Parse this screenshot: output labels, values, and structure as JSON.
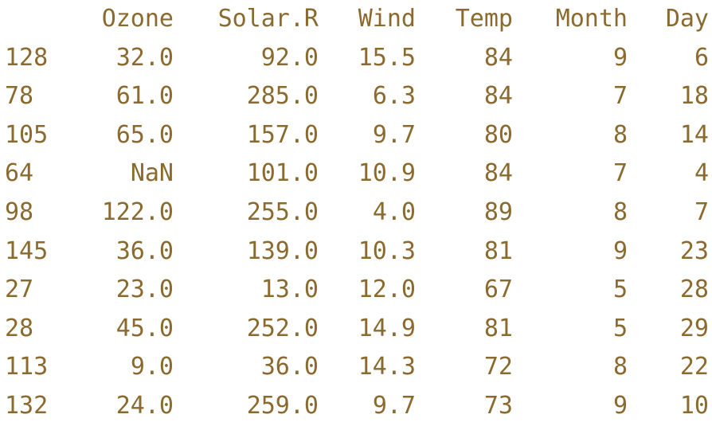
{
  "columns": [
    "Ozone",
    "Solar.R",
    "Wind",
    "Temp",
    "Month",
    "Day"
  ],
  "rows": [
    {
      "index": "128",
      "values": [
        "32.0",
        "92.0",
        "15.5",
        "84",
        "9",
        "6"
      ]
    },
    {
      "index": "78",
      "values": [
        "61.0",
        "285.0",
        "6.3",
        "84",
        "7",
        "18"
      ]
    },
    {
      "index": "105",
      "values": [
        "65.0",
        "157.0",
        "9.7",
        "80",
        "8",
        "14"
      ]
    },
    {
      "index": "64",
      "values": [
        "NaN",
        "101.0",
        "10.9",
        "84",
        "7",
        "4"
      ]
    },
    {
      "index": "98",
      "values": [
        "122.0",
        "255.0",
        "4.0",
        "89",
        "8",
        "7"
      ]
    },
    {
      "index": "145",
      "values": [
        "36.0",
        "139.0",
        "10.3",
        "81",
        "9",
        "23"
      ]
    },
    {
      "index": "27",
      "values": [
        "23.0",
        "13.0",
        "12.0",
        "67",
        "5",
        "28"
      ]
    },
    {
      "index": "28",
      "values": [
        "45.0",
        "252.0",
        "14.9",
        "81",
        "5",
        "29"
      ]
    },
    {
      "index": "113",
      "values": [
        "9.0",
        "36.0",
        "14.3",
        "72",
        "8",
        "22"
      ]
    },
    {
      "index": "132",
      "values": [
        "24.0",
        "259.0",
        "9.7",
        "73",
        "9",
        "10"
      ]
    }
  ],
  "colors": {
    "text": "#8a6a2e",
    "background": "#ffffff"
  }
}
